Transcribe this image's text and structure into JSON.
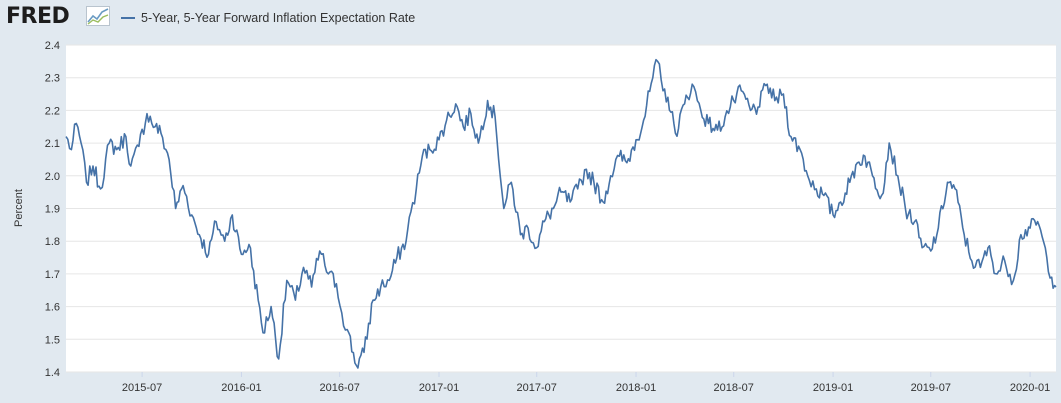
{
  "header": {
    "logo_text": "FRED",
    "logo_icon": "fred-line-chart-icon"
  },
  "colors": {
    "page_background": "#e1e9f0",
    "plot_background": "#ffffff",
    "gridline": "#e6e6e6",
    "series": "#4572a7"
  },
  "chart_data": {
    "type": "line",
    "title": "",
    "ylabel": "Percent",
    "xlabel": "",
    "ylim": [
      1.4,
      2.4
    ],
    "xlim": [
      "2015-02-10",
      "2020-02-18"
    ],
    "y_ticks": [
      1.4,
      1.5,
      1.6,
      1.7,
      1.8,
      1.9,
      2.0,
      2.1,
      2.2,
      2.3,
      2.4
    ],
    "y_tick_labels": [
      "1.4",
      "1.5",
      "1.6",
      "1.7",
      "1.8",
      "1.9",
      "2.0",
      "2.1",
      "2.2",
      "2.3",
      "2.4"
    ],
    "x_ticks": [
      "2015-07-01",
      "2016-01-01",
      "2016-07-01",
      "2017-01-01",
      "2017-07-01",
      "2018-01-01",
      "2018-07-01",
      "2019-01-01",
      "2019-07-01",
      "2020-01-01"
    ],
    "x_tick_labels": [
      "2015-07",
      "2016-01",
      "2016-07",
      "2017-01",
      "2017-07",
      "2018-01",
      "2018-07",
      "2019-01",
      "2019-07",
      "2020-01"
    ],
    "grid": true,
    "legend": "top-left",
    "series": [
      {
        "name": "5-Year, 5-Year Forward Inflation Expectation Rate",
        "x": [
          "2015-02-10",
          "2015-02-20",
          "2015-03-01",
          "2015-03-10",
          "2015-03-20",
          "2015-04-01",
          "2015-04-15",
          "2015-05-01",
          "2015-05-15",
          "2015-06-01",
          "2015-06-10",
          "2015-06-25",
          "2015-07-10",
          "2015-07-25",
          "2015-08-05",
          "2015-08-20",
          "2015-09-01",
          "2015-09-15",
          "2015-10-01",
          "2015-10-15",
          "2015-11-01",
          "2015-11-15",
          "2015-12-01",
          "2015-12-15",
          "2016-01-01",
          "2016-01-15",
          "2016-02-01",
          "2016-02-10",
          "2016-02-25",
          "2016-03-10",
          "2016-03-25",
          "2016-04-10",
          "2016-04-25",
          "2016-05-10",
          "2016-05-25",
          "2016-06-10",
          "2016-06-25",
          "2016-07-05",
          "2016-07-15",
          "2016-08-01",
          "2016-08-15",
          "2016-09-01",
          "2016-09-15",
          "2016-10-01",
          "2016-10-15",
          "2016-11-01",
          "2016-11-10",
          "2016-11-20",
          "2016-12-01",
          "2016-12-15",
          "2017-01-01",
          "2017-01-15",
          "2017-02-01",
          "2017-02-15",
          "2017-03-01",
          "2017-03-15",
          "2017-04-01",
          "2017-04-15",
          "2017-05-01",
          "2017-05-15",
          "2017-06-01",
          "2017-06-15",
          "2017-07-01",
          "2017-07-15",
          "2017-08-01",
          "2017-08-15",
          "2017-09-01",
          "2017-09-15",
          "2017-10-01",
          "2017-10-15",
          "2017-11-01",
          "2017-11-15",
          "2017-12-01",
          "2017-12-15",
          "2018-01-01",
          "2018-01-15",
          "2018-02-01",
          "2018-02-10",
          "2018-02-20",
          "2018-03-01",
          "2018-03-15",
          "2018-04-01",
          "2018-04-15",
          "2018-05-01",
          "2018-05-15",
          "2018-06-01",
          "2018-06-15",
          "2018-07-01",
          "2018-07-15",
          "2018-08-01",
          "2018-08-15",
          "2018-09-01",
          "2018-09-15",
          "2018-10-01",
          "2018-10-15",
          "2018-11-01",
          "2018-11-15",
          "2018-12-01",
          "2018-12-15",
          "2019-01-01",
          "2019-01-15",
          "2019-02-01",
          "2019-02-15",
          "2019-03-01",
          "2019-03-15",
          "2019-04-01",
          "2019-04-15",
          "2019-05-01",
          "2019-05-15",
          "2019-06-01",
          "2019-06-15",
          "2019-07-01",
          "2019-07-15",
          "2019-08-01",
          "2019-08-15",
          "2019-09-01",
          "2019-09-15",
          "2019-10-01",
          "2019-10-15",
          "2019-11-01",
          "2019-11-15",
          "2019-12-01",
          "2019-12-15",
          "2020-01-01",
          "2020-01-15",
          "2020-02-01",
          "2020-02-10",
          "2020-02-18"
        ],
        "values": [
          2.12,
          2.08,
          2.16,
          2.1,
          1.98,
          2.03,
          1.96,
          2.1,
          2.08,
          2.12,
          2.03,
          2.09,
          2.19,
          2.15,
          2.13,
          2.05,
          1.9,
          1.97,
          1.88,
          1.82,
          1.76,
          1.86,
          1.8,
          1.88,
          1.76,
          1.79,
          1.62,
          1.52,
          1.6,
          1.44,
          1.68,
          1.62,
          1.72,
          1.66,
          1.77,
          1.7,
          1.67,
          1.58,
          1.53,
          1.42,
          1.46,
          1.62,
          1.66,
          1.68,
          1.75,
          1.8,
          1.89,
          1.96,
          2.06,
          2.08,
          2.11,
          2.17,
          2.22,
          2.15,
          2.19,
          2.1,
          2.23,
          2.18,
          1.9,
          1.98,
          1.82,
          1.84,
          1.78,
          1.86,
          1.9,
          1.95,
          1.92,
          1.96,
          2.02,
          1.98,
          1.92,
          2.0,
          2.06,
          2.04,
          2.11,
          2.17,
          2.3,
          2.35,
          2.26,
          2.24,
          2.13,
          2.22,
          2.28,
          2.2,
          2.16,
          2.14,
          2.18,
          2.23,
          2.26,
          2.2,
          2.21,
          2.28,
          2.23,
          2.25,
          2.12,
          2.08,
          2.0,
          1.96,
          1.94,
          1.88,
          1.92,
          1.98,
          2.04,
          2.06,
          2.0,
          1.94,
          2.1,
          2.0,
          1.9,
          1.86,
          1.78,
          1.77,
          1.84,
          1.98,
          1.96,
          1.82,
          1.74,
          1.72,
          1.78,
          1.7,
          1.74,
          1.68,
          1.82,
          1.84,
          1.86,
          1.75,
          1.69,
          1.66
        ]
      }
    ]
  }
}
